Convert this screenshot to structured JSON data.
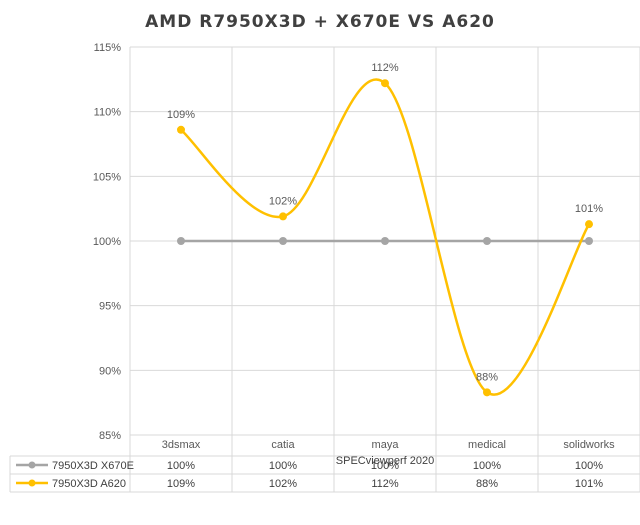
{
  "chart_data": {
    "type": "line",
    "title": "AMD R7950X3D + X670E VS A620",
    "xlabel": "SPECviewperf 2020",
    "ylabel": "",
    "ylim": [
      85,
      115
    ],
    "yticks": [
      85,
      90,
      95,
      100,
      105,
      110,
      115
    ],
    "ytick_labels": [
      "85%",
      "90%",
      "95%",
      "100%",
      "105%",
      "110%",
      "115%"
    ],
    "categories": [
      "3dsmax",
      "catia",
      "maya",
      "medical",
      "solidworks"
    ],
    "grid": true,
    "legend": "data-table-bottom",
    "series": [
      {
        "name": "7950X3D X670E",
        "color": "#a5a5a5",
        "smooth": false,
        "values": [
          100,
          100,
          100,
          100,
          100
        ],
        "table_labels": [
          "100%",
          "100%",
          "100%",
          "100%",
          "100%"
        ],
        "data_labels": []
      },
      {
        "name": "7950X3D A620",
        "color": "#ffc000",
        "smooth": true,
        "values": [
          108.6,
          101.9,
          112.2,
          88.3,
          101.3
        ],
        "table_labels": [
          "109%",
          "102%",
          "112%",
          "88%",
          "101%"
        ],
        "data_labels": [
          "109%",
          "102%",
          "112%",
          "88%",
          "101%"
        ]
      }
    ]
  }
}
